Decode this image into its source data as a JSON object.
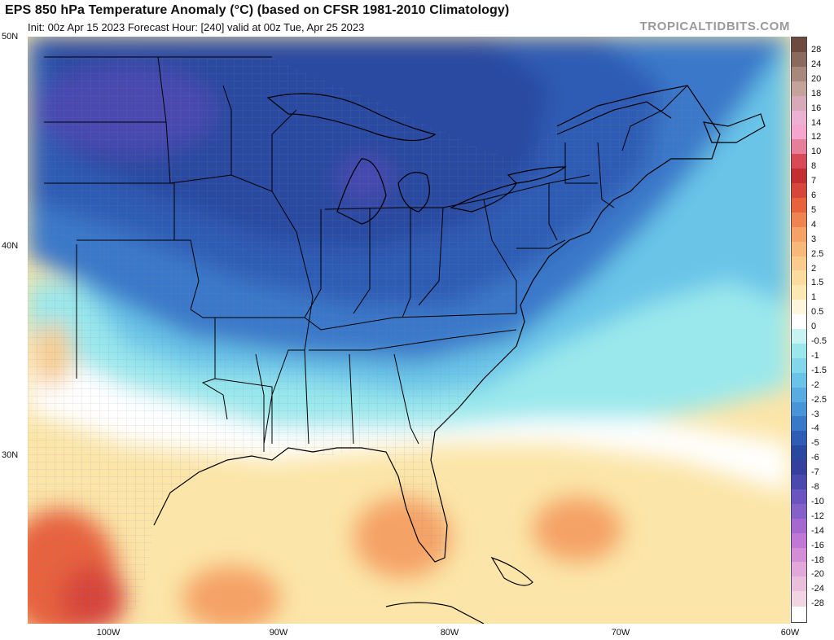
{
  "header": {
    "title": "EPS 850 hPa Temperature Anomaly (°C) (based on CFSR 1981-2010 Climatology)",
    "subtitle": "Init: 00z Apr 15 2023   Forecast Hour: [240]   valid at 00z Tue, Apr 25 2023",
    "brand": "TROPICALTIDBITS.COM"
  },
  "axes": {
    "lat_labels": [
      "50N",
      "40N",
      "30N"
    ],
    "lon_labels": [
      "100W",
      "90W",
      "80W",
      "70W",
      "60W"
    ]
  },
  "legend": {
    "labels": [
      "28",
      "24",
      "20",
      "18",
      "16",
      "14",
      "12",
      "10",
      "8",
      "7",
      "6",
      "5",
      "4",
      "3",
      "2.5",
      "2",
      "1.5",
      "1",
      "0.5",
      "0",
      "-0.5",
      "-1",
      "-1.5",
      "-2",
      "-2.5",
      "-3",
      "-4",
      "-5",
      "-6",
      "-7",
      "-8",
      "-10",
      "-12",
      "-14",
      "-16",
      "-18",
      "-20",
      "-24",
      "-28"
    ],
    "colors": [
      "#6e4b3f",
      "#8a6a5e",
      "#a8887c",
      "#c4a39a",
      "#d8aab9",
      "#ecb2d4",
      "#f4a6cf",
      "#e67f9a",
      "#d94a56",
      "#c42d32",
      "#d7453b",
      "#e8623d",
      "#f08450",
      "#f5a266",
      "#f7b979",
      "#f8cc8c",
      "#fadc9e",
      "#fbe9b4",
      "#fdf6dc",
      "#ffffff",
      "#c8f3f3",
      "#9ae8ec",
      "#82d8ea",
      "#69c4e8",
      "#58ace2",
      "#4894d8",
      "#3a78c9",
      "#2f5cb4",
      "#2a48a0",
      "#33409e",
      "#4949b0",
      "#6a55c0",
      "#8660c9",
      "#a468d0",
      "#c078d6",
      "#d48ed8",
      "#e2a8d9",
      "#eabfdc",
      "#f2d5e2"
    ]
  },
  "map_layers": [
    {
      "name": "US states"
    },
    {
      "name": "US counties"
    },
    {
      "name": "Coastlines"
    }
  ]
}
